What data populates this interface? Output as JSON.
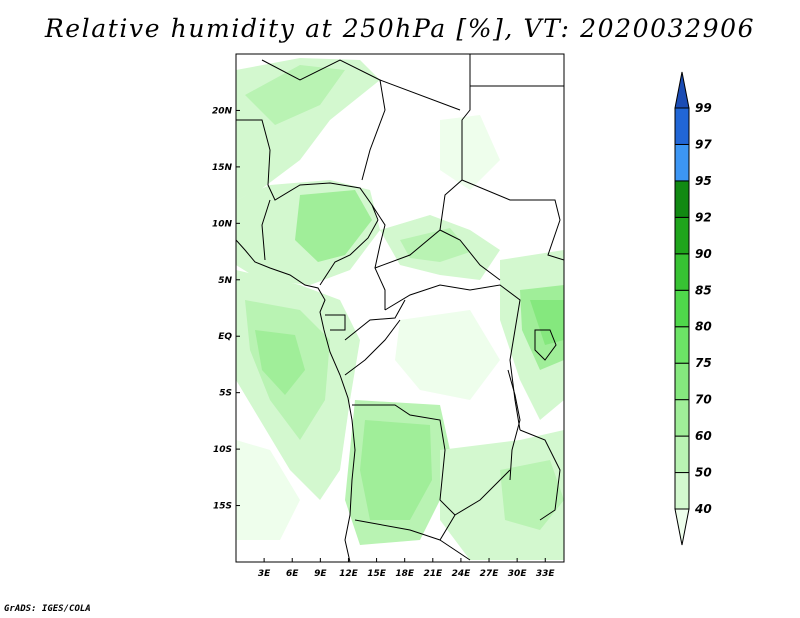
{
  "title": "Relative humidity at 250hPa [%], VT: 2020032906",
  "credit": "GrADS: IGES/COLA",
  "map": {
    "lon_range": [
      0,
      35
    ],
    "lat_range": [
      -20,
      25
    ],
    "lon_ticks": [
      "3E",
      "6E",
      "9E",
      "12E",
      "15E",
      "18E",
      "21E",
      "24E",
      "27E",
      "30E",
      "33E"
    ],
    "lat_ticks": [
      "20N",
      "15N",
      "10N",
      "5N",
      "EQ",
      "5S",
      "10S",
      "15S"
    ]
  },
  "colorbar": {
    "levels": [
      "40",
      "50",
      "60",
      "70",
      "75",
      "80",
      "85",
      "90",
      "92",
      "95",
      "97",
      "99"
    ],
    "colors": [
      "#eefeec",
      "#d3f8cf",
      "#b9f3b3",
      "#a0ee99",
      "#85e87e",
      "#6ce466",
      "#4fd84b",
      "#37c233",
      "#1fa51c",
      "#118912",
      "#3c96f4",
      "#2166d6",
      "#1b4cb4"
    ]
  },
  "chart_data": {
    "type": "heatmap",
    "title": "Relative humidity at 250hPa [%], VT: 2020032906",
    "xlabel": "",
    "ylabel": "",
    "xlim": [
      0,
      35
    ],
    "ylim": [
      -20,
      25
    ],
    "x_ticks": [
      "3E",
      "6E",
      "9E",
      "12E",
      "15E",
      "18E",
      "21E",
      "24E",
      "27E",
      "30E",
      "33E"
    ],
    "y_ticks": [
      "20N",
      "15N",
      "10N",
      "5N",
      "EQ",
      "5S",
      "10S",
      "15S"
    ],
    "legend": "colorbar right",
    "contour_levels": [
      40,
      50,
      60,
      70,
      75,
      80,
      85,
      90,
      92,
      95,
      97,
      99
    ],
    "units": "%"
  }
}
